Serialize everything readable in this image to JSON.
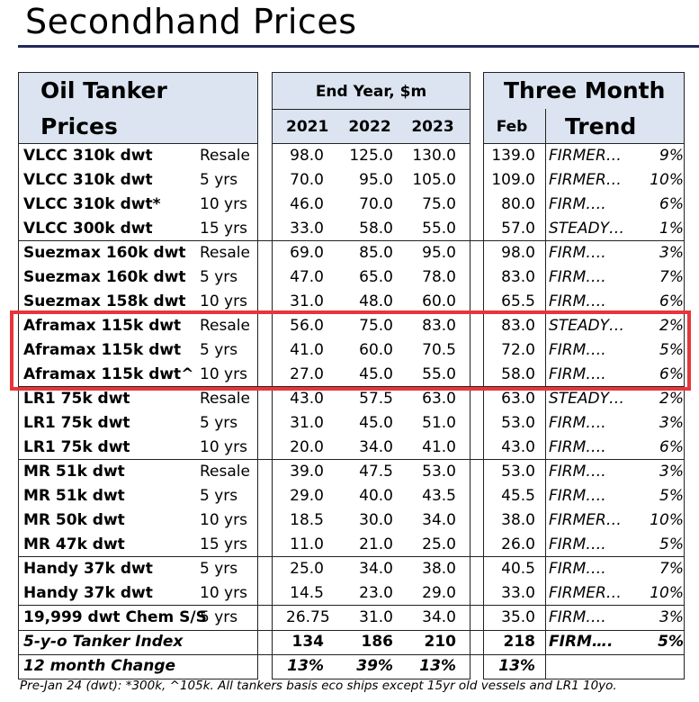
{
  "title": "Secondhand Prices",
  "headers": {
    "left_line1": "Oil Tanker",
    "left_line2": "Prices",
    "mid_title": "End Year, $m",
    "years": [
      "2021",
      "2022",
      "2023"
    ],
    "right_title_line1": "Three Month",
    "feb": "Feb",
    "trend": "Trend"
  },
  "rows": [
    {
      "name": "VLCC 310k dwt",
      "age": "Resale",
      "y2021": "98.0",
      "y2022": "125.0",
      "y2023": "130.0",
      "feb": "139.0",
      "trend": "FIRMER…",
      "pct": "9%"
    },
    {
      "name": "VLCC 310k dwt",
      "age": "5 yrs",
      "y2021": "70.0",
      "y2022": "95.0",
      "y2023": "105.0",
      "feb": "109.0",
      "trend": "FIRMER…",
      "pct": "10%"
    },
    {
      "name": "VLCC 310k dwt*",
      "age": "10 yrs",
      "y2021": "46.0",
      "y2022": "70.0",
      "y2023": "75.0",
      "feb": "80.0",
      "trend": "FIRM….",
      "pct": "6%"
    },
    {
      "name": "VLCC 300k dwt",
      "age": "15 yrs",
      "y2021": "33.0",
      "y2022": "58.0",
      "y2023": "55.0",
      "feb": "57.0",
      "trend": "STEADY…",
      "pct": "1%"
    },
    {
      "name": "Suezmax 160k dwt",
      "age": "Resale",
      "y2021": "69.0",
      "y2022": "85.0",
      "y2023": "95.0",
      "feb": "98.0",
      "trend": "FIRM….",
      "pct": "3%"
    },
    {
      "name": "Suezmax 160k dwt",
      "age": "5 yrs",
      "y2021": "47.0",
      "y2022": "65.0",
      "y2023": "78.0",
      "feb": "83.0",
      "trend": "FIRM….",
      "pct": "7%"
    },
    {
      "name": "Suezmax 158k dwt",
      "age": "10 yrs",
      "y2021": "31.0",
      "y2022": "48.0",
      "y2023": "60.0",
      "feb": "65.5",
      "trend": "FIRM….",
      "pct": "6%"
    },
    {
      "name": "Aframax 115k dwt",
      "age": "Resale",
      "y2021": "56.0",
      "y2022": "75.0",
      "y2023": "83.0",
      "feb": "83.0",
      "trend": "STEADY…",
      "pct": "2%"
    },
    {
      "name": "Aframax 115k dwt",
      "age": "5 yrs",
      "y2021": "41.0",
      "y2022": "60.0",
      "y2023": "70.5",
      "feb": "72.0",
      "trend": "FIRM….",
      "pct": "5%"
    },
    {
      "name": "Aframax 115k dwt^",
      "age": "10 yrs",
      "y2021": "27.0",
      "y2022": "45.0",
      "y2023": "55.0",
      "feb": "58.0",
      "trend": "FIRM….",
      "pct": "6%"
    },
    {
      "name": "LR1 75k dwt",
      "age": "Resale",
      "y2021": "43.0",
      "y2022": "57.5",
      "y2023": "63.0",
      "feb": "63.0",
      "trend": "STEADY…",
      "pct": "2%"
    },
    {
      "name": "LR1 75k dwt",
      "age": "5 yrs",
      "y2021": "31.0",
      "y2022": "45.0",
      "y2023": "51.0",
      "feb": "53.0",
      "trend": "FIRM….",
      "pct": "3%"
    },
    {
      "name": "LR1 75k dwt",
      "age": "10 yrs",
      "y2021": "20.0",
      "y2022": "34.0",
      "y2023": "41.0",
      "feb": "43.0",
      "trend": "FIRM….",
      "pct": "6%"
    },
    {
      "name": "MR 51k dwt",
      "age": "Resale",
      "y2021": "39.0",
      "y2022": "47.5",
      "y2023": "53.0",
      "feb": "53.0",
      "trend": "FIRM….",
      "pct": "3%"
    },
    {
      "name": "MR 51k dwt",
      "age": "5 yrs",
      "y2021": "29.0",
      "y2022": "40.0",
      "y2023": "43.5",
      "feb": "45.5",
      "trend": "FIRM….",
      "pct": "5%"
    },
    {
      "name": "MR 50k dwt",
      "age": "10 yrs",
      "y2021": "18.5",
      "y2022": "30.0",
      "y2023": "34.0",
      "feb": "38.0",
      "trend": "FIRMER…",
      "pct": "10%"
    },
    {
      "name": "MR 47k dwt",
      "age": "15 yrs",
      "y2021": "11.0",
      "y2022": "21.0",
      "y2023": "25.0",
      "feb": "26.0",
      "trend": "FIRM….",
      "pct": "5%"
    },
    {
      "name": "Handy 37k dwt",
      "age": "5 yrs",
      "y2021": "25.0",
      "y2022": "34.0",
      "y2023": "38.0",
      "feb": "40.5",
      "trend": "FIRM….",
      "pct": "7%"
    },
    {
      "name": "Handy 37k dwt",
      "age": "10 yrs",
      "y2021": "14.5",
      "y2022": "23.0",
      "y2023": "29.0",
      "feb": "33.0",
      "trend": "FIRMER…",
      "pct": "10%"
    },
    {
      "name": "19,999 dwt Chem S/S",
      "age": "5 yrs",
      "y2021": "26.75",
      "y2022": "31.0",
      "y2023": "34.0",
      "feb": "35.0",
      "trend": "FIRM….",
      "pct": "3%"
    }
  ],
  "index_row": {
    "name": "5-y-o Tanker Index",
    "y2021": "134",
    "y2022": "186",
    "y2023": "210",
    "feb": "218",
    "trend": "FIRM….",
    "pct": "5%"
  },
  "change_row": {
    "name": "12 month Change",
    "y2021": "13%",
    "y2022": "39%",
    "y2023": "13%",
    "feb": "13%"
  },
  "footnote": "Pre-Jan 24 (dwt): *300k, ^105k. All tankers basis eco ships except 15yr old vessels and LR1 10yo.",
  "colors": {
    "header_bg": "#dbe4f0",
    "title_rule": "#1f2a5a",
    "highlight": "#e8353b"
  }
}
